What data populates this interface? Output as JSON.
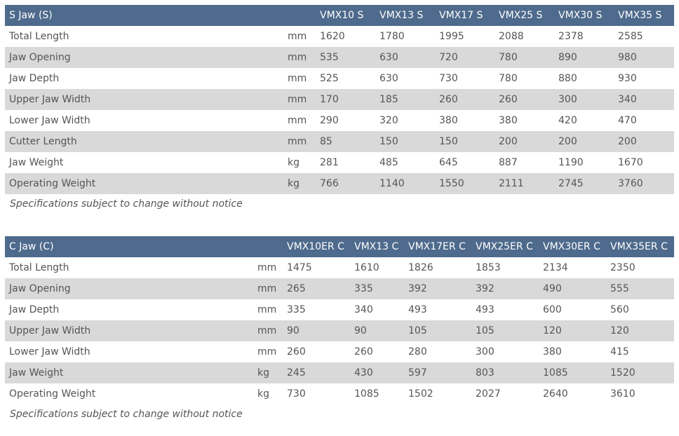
{
  "s_jaw": {
    "title": "S Jaw (S)",
    "models": [
      "VMX10 S",
      "VMX13 S",
      "VMX17 S",
      "VMX25 S",
      "VMX30 S",
      "VMX35 S"
    ],
    "rows": [
      {
        "label": "Total Length",
        "unit": "mm",
        "values": [
          "1620",
          "1780",
          "1995",
          "2088",
          "2378",
          "2585"
        ]
      },
      {
        "label": "Jaw Opening",
        "unit": "mm",
        "values": [
          "535",
          "630",
          "720",
          "780",
          "890",
          "980"
        ]
      },
      {
        "label": "Jaw Depth",
        "unit": "mm",
        "values": [
          "525",
          "630",
          "730",
          "780",
          "880",
          "930"
        ]
      },
      {
        "label": "Upper Jaw Width",
        "unit": "mm",
        "values": [
          "170",
          "185",
          "260",
          "260",
          "300",
          "340"
        ]
      },
      {
        "label": "Lower Jaw Width",
        "unit": "mm",
        "values": [
          "290",
          "320",
          "380",
          "380",
          "420",
          "470"
        ]
      },
      {
        "label": "Cutter Length",
        "unit": "mm",
        "values": [
          "85",
          "150",
          "150",
          "200",
          "200",
          "200"
        ]
      },
      {
        "label": "Jaw Weight",
        "unit": "kg",
        "values": [
          "281",
          "485",
          "645",
          "887",
          "1190",
          "1670"
        ]
      },
      {
        "label": "Operating Weight",
        "unit": "kg",
        "values": [
          "766",
          "1140",
          "1550",
          "2111",
          "2745",
          "3760"
        ]
      }
    ],
    "note": "Specifications subject to change without notice"
  },
  "c_jaw": {
    "title": "C Jaw (C)",
    "models": [
      "VMX10ER C",
      "VMX13 C",
      "VMX17ER C",
      "VMX25ER C",
      "VMX30ER C",
      "VMX35ER C"
    ],
    "rows": [
      {
        "label": "Total Length",
        "unit": "mm",
        "values": [
          "1475",
          "1610",
          "1826",
          "1853",
          "2134",
          "2350"
        ]
      },
      {
        "label": "Jaw Opening",
        "unit": "mm",
        "values": [
          "265",
          "335",
          "392",
          "392",
          "490",
          "555"
        ]
      },
      {
        "label": "Jaw Depth",
        "unit": "mm",
        "values": [
          "335",
          "340",
          "493",
          "493",
          "600",
          "560"
        ]
      },
      {
        "label": "Upper Jaw Width",
        "unit": "mm",
        "values": [
          "90",
          "90",
          "105",
          "105",
          "120",
          "120"
        ]
      },
      {
        "label": "Lower Jaw Width",
        "unit": "mm",
        "values": [
          "260",
          "260",
          "280",
          "300",
          "380",
          "415"
        ]
      },
      {
        "label": "Jaw Weight",
        "unit": "kg",
        "values": [
          "245",
          "430",
          "597",
          "803",
          "1085",
          "1520"
        ]
      },
      {
        "label": "Operating Weight",
        "unit": "kg",
        "values": [
          "730",
          "1085",
          "1502",
          "2027",
          "2640",
          "3610"
        ]
      }
    ],
    "note": "Specifications subject to change without notice"
  },
  "colors": {
    "header_bg": "#4e6a8c",
    "stripe_bg": "#d9d9d9",
    "text": "#555555"
  }
}
